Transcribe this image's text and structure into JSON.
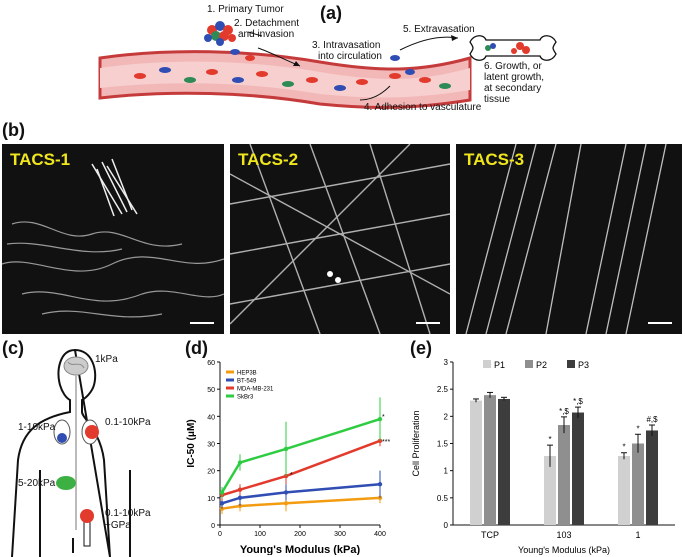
{
  "panel_a": {
    "letter": "(a)",
    "steps": {
      "s1": "1. Primary Tumor",
      "s2a": "2. Detachment",
      "s2b": "and invasion",
      "s3a": "3. Intravasation",
      "s3b": "into circulation",
      "s4": "4. Adhesion to vasculature",
      "s5": "5. Extravasation",
      "s6a": "6. Growth, or",
      "s6b": "latent growth,",
      "s6c": "at secondary",
      "s6d": "tissue"
    }
  },
  "panel_b": {
    "letter": "(b)",
    "images": [
      "TACS-1",
      "TACS-2",
      "TACS-3"
    ]
  },
  "panel_c": {
    "letter": "(c)",
    "labels": {
      "brain": "1kPa",
      "lung": "1-10kPa",
      "breast": "0.1-10kPa",
      "liver": "5-20kPa",
      "bone_a": "0.1-10kPa",
      "bone_b": "~GPa"
    }
  },
  "panel_d": {
    "letter": "(d)"
  },
  "panel_e": {
    "letter": "(e)"
  },
  "chart_data": [
    {
      "type": "line",
      "xlabel": "Young's Modulus (kPa)",
      "ylabel": "IC-50 (μM)",
      "xlim": [
        0,
        400
      ],
      "ylim": [
        0,
        60
      ],
      "xticks": [
        "0",
        "100",
        "200",
        "300",
        "400"
      ],
      "yticks": [
        "0",
        "10",
        "20",
        "30",
        "40",
        "50",
        "60"
      ],
      "legend_position": "top-left",
      "series": [
        {
          "name": "HEP3B",
          "color": "#f39c12",
          "x": [
            5,
            50,
            165,
            400
          ],
          "y": [
            6,
            7,
            8,
            10
          ],
          "err": [
            2,
            2,
            3,
            2
          ]
        },
        {
          "name": "BT-549",
          "color": "#2f4db3",
          "x": [
            5,
            50,
            165,
            400
          ],
          "y": [
            8,
            10,
            12,
            15
          ],
          "err": [
            2,
            3,
            3,
            5
          ]
        },
        {
          "name": "MDA-MB-231",
          "color": "#e23b2e",
          "x": [
            5,
            50,
            165,
            400
          ],
          "y": [
            11,
            13,
            18,
            31
          ],
          "err": [
            2,
            2,
            3,
            2
          ]
        },
        {
          "name": "SkBr3",
          "color": "#2ecc40",
          "x": [
            5,
            50,
            165,
            400
          ],
          "y": [
            12,
            23,
            28,
            39
          ],
          "err": [
            2,
            3,
            10,
            8
          ]
        }
      ],
      "annotations": [
        "*",
        "***",
        "*"
      ]
    },
    {
      "type": "bar",
      "xlabel": "Young's Modulus (kPa)",
      "ylabel": "Cell Proliferation",
      "ylim": [
        0,
        3
      ],
      "yticks": [
        "0",
        "0.5",
        "1",
        "1.5",
        "2",
        "2.5",
        "3"
      ],
      "categories": [
        "TCP",
        "103",
        "1"
      ],
      "legend_position": "top",
      "series": [
        {
          "name": "P1",
          "color": "#d0d0d0",
          "values": [
            2.29,
            1.27,
            1.27
          ],
          "err": [
            0.03,
            0.2,
            0.06
          ]
        },
        {
          "name": "P2",
          "color": "#8f8f8f",
          "values": [
            2.39,
            1.84,
            1.5
          ],
          "err": [
            0.05,
            0.15,
            0.17
          ]
        },
        {
          "name": "P3",
          "color": "#3d3d3d",
          "values": [
            2.32,
            2.07,
            1.74
          ],
          "err": [
            0.03,
            0.1,
            0.1
          ]
        }
      ],
      "bar_labels": [
        [
          "",
          "",
          ""
        ],
        [
          "*",
          "*,$",
          "*,$"
        ],
        [
          "*",
          "*",
          "#,$"
        ]
      ]
    }
  ]
}
